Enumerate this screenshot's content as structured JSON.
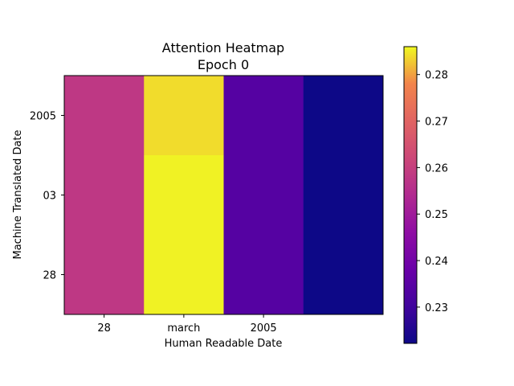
{
  "chart_data": {
    "type": "heatmap",
    "title_lines": [
      "Attention Heatmap",
      "Epoch 0"
    ],
    "xlabel": "Human Readable Date",
    "ylabel": "Machine Translated Date",
    "x_tick_labels": [
      "28",
      "march",
      "2005",
      ""
    ],
    "y_tick_labels": [
      "2005",
      "03",
      "28"
    ],
    "rows": [
      [
        0.258,
        0.284,
        0.234,
        0.2222
      ],
      [
        0.258,
        0.2855,
        0.234,
        0.2222
      ],
      [
        0.258,
        0.2855,
        0.234,
        0.2222
      ]
    ],
    "colormap": "plasma",
    "colorbar": {
      "min": 0.2222,
      "max": 0.286,
      "ticks": [
        0.23,
        0.24,
        0.25,
        0.26,
        0.27,
        0.28
      ],
      "tick_labels": [
        "0.23",
        "0.24",
        "0.25",
        "0.26",
        "0.27",
        "0.28"
      ]
    },
    "grid": false
  }
}
